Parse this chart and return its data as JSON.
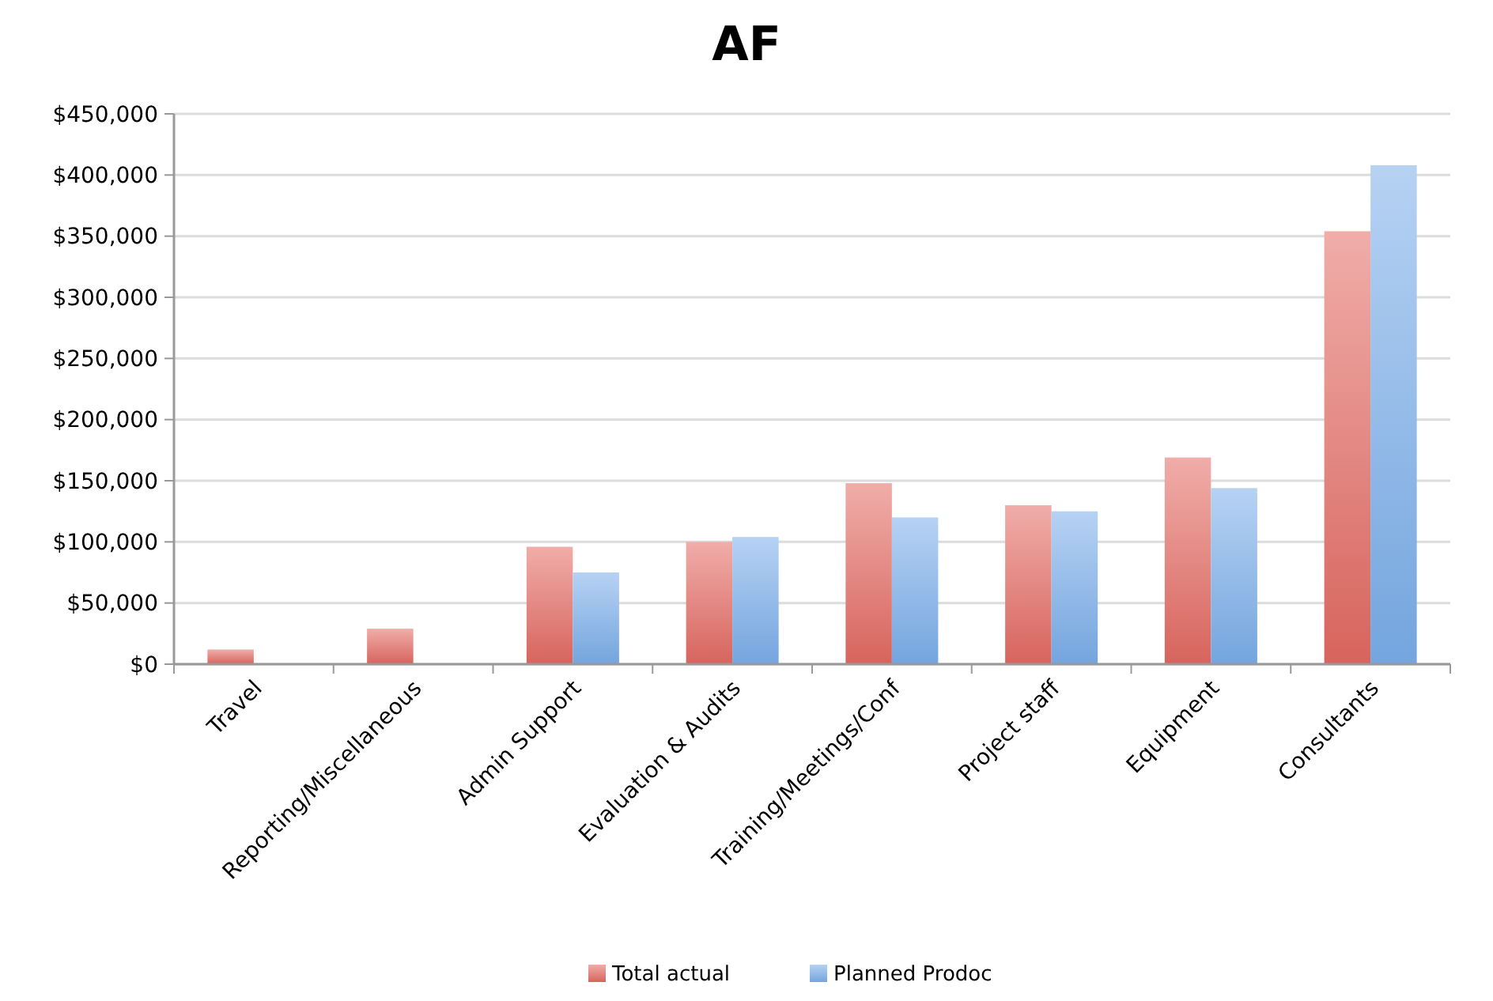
{
  "chart_data": {
    "type": "bar",
    "title": "AF",
    "categories": [
      "Travel",
      "Reporting/Miscellaneous",
      "Admin Support",
      "Evaluation & Audits",
      "Training/Meetings/Conf",
      "Project staff",
      "Equipment",
      "Consultants"
    ],
    "series": [
      {
        "name": "Total actual",
        "color": "#e36a62",
        "values": [
          12000,
          29000,
          96000,
          100000,
          148000,
          130000,
          169000,
          354000
        ]
      },
      {
        "name": "Planned Prodoc",
        "color": "#7aaeea",
        "values": [
          null,
          null,
          75000,
          104000,
          120000,
          125000,
          144000,
          408000
        ]
      }
    ],
    "ylim": [
      0,
      450000
    ],
    "yticks": [
      {
        "value": 0,
        "label": "$0"
      },
      {
        "value": 50000,
        "label": "$50,000"
      },
      {
        "value": 100000,
        "label": "$100,000"
      },
      {
        "value": 150000,
        "label": "$150,000"
      },
      {
        "value": 200000,
        "label": "$200,000"
      },
      {
        "value": 250000,
        "label": "$250,000"
      },
      {
        "value": 300000,
        "label": "$300,000"
      },
      {
        "value": 350000,
        "label": "$350,000"
      },
      {
        "value": 400000,
        "label": "$400,000"
      },
      {
        "value": 450000,
        "label": "$450,000"
      }
    ],
    "grid": "y",
    "legend": "bottom"
  }
}
